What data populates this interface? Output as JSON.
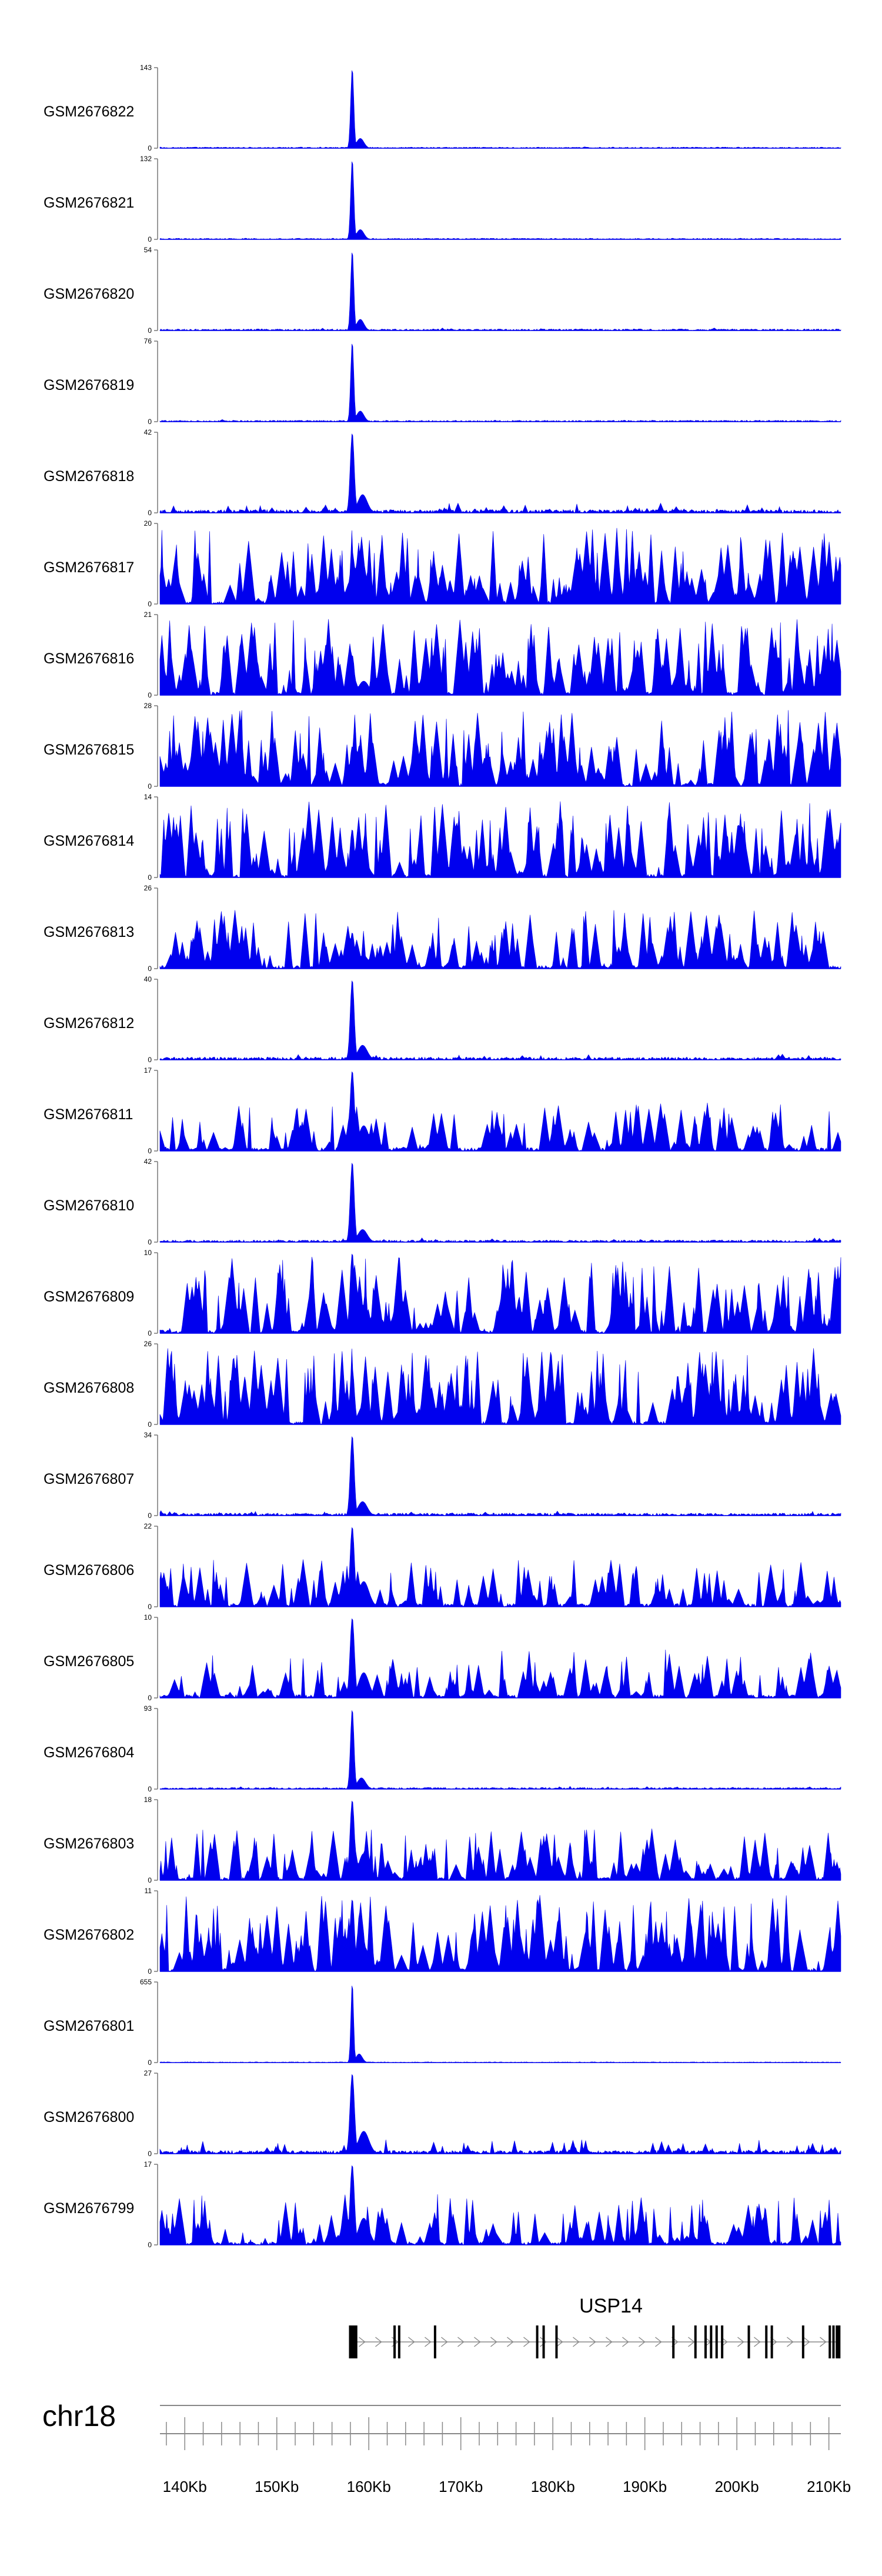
{
  "chart_data": {
    "type": "area",
    "title": "",
    "chromosome": "chr18",
    "x_unit": "Kb",
    "xlim": [
      137.3,
      211.3
    ],
    "ticks_kb": [
      140,
      150,
      160,
      170,
      180,
      190,
      200,
      210
    ],
    "tick_labels": [
      "140Kb",
      "150Kb",
      "160Kb",
      "170Kb",
      "180Kb",
      "190Kb",
      "200Kb",
      "210Kb"
    ],
    "minor_tick_step_kb": 2,
    "series_color": "#0000ee",
    "peak_center_kb": 158.2,
    "tracks": [
      {
        "name": "GSM2676822",
        "ymax": "143",
        "ymin": "0",
        "peak_fraction": 1.0,
        "background": 0.05,
        "peak_width_kb": 0.35
      },
      {
        "name": "GSM2676821",
        "ymax": "132",
        "ymin": "0",
        "peak_fraction": 1.0,
        "background": 0.05,
        "peak_width_kb": 0.35
      },
      {
        "name": "GSM2676820",
        "ymax": "54",
        "ymin": "0",
        "peak_fraction": 1.0,
        "background": 0.1,
        "peak_width_kb": 0.35
      },
      {
        "name": "GSM2676819",
        "ymax": "76",
        "ymin": "0",
        "peak_fraction": 1.0,
        "background": 0.08,
        "peak_width_kb": 0.35
      },
      {
        "name": "GSM2676818",
        "ymax": "42",
        "ymin": "0",
        "peak_fraction": 1.0,
        "background": 0.35,
        "peak_width_kb": 0.45
      },
      {
        "name": "GSM2676817",
        "ymax": "20",
        "ymin": "0",
        "peak_fraction": 0.55,
        "background": 0.95,
        "peak_width_kb": 0.5
      },
      {
        "name": "GSM2676816",
        "ymax": "21",
        "ymin": "0",
        "peak_fraction": 0.5,
        "background": 0.95,
        "peak_width_kb": 0.5
      },
      {
        "name": "GSM2676815",
        "ymax": "28",
        "ymin": "0",
        "peak_fraction": 0.5,
        "background": 0.95,
        "peak_width_kb": 0.5
      },
      {
        "name": "GSM2676814",
        "ymax": "14",
        "ymin": "0",
        "peak_fraction": 0.6,
        "background": 0.95,
        "peak_width_kb": 0.5
      },
      {
        "name": "GSM2676813",
        "ymax": "26",
        "ymin": "0",
        "peak_fraction": 0.45,
        "background": 0.75,
        "peak_width_kb": 0.5
      },
      {
        "name": "GSM2676812",
        "ymax": "40",
        "ymin": "0",
        "peak_fraction": 1.0,
        "background": 0.22,
        "peak_width_kb": 0.45
      },
      {
        "name": "GSM2676811",
        "ymax": "17",
        "ymin": "0",
        "peak_fraction": 1.0,
        "background": 0.6,
        "peak_width_kb": 0.5
      },
      {
        "name": "GSM2676810",
        "ymax": "42",
        "ymin": "0",
        "peak_fraction": 1.0,
        "background": 0.15,
        "peak_width_kb": 0.45
      },
      {
        "name": "GSM2676809",
        "ymax": "10",
        "ymin": "0",
        "peak_fraction": 1.0,
        "background": 0.95,
        "peak_width_kb": 0.5
      },
      {
        "name": "GSM2676808",
        "ymax": "26",
        "ymin": "0",
        "peak_fraction": 0.7,
        "background": 0.95,
        "peak_width_kb": 0.5
      },
      {
        "name": "GSM2676807",
        "ymax": "34",
        "ymin": "0",
        "peak_fraction": 1.0,
        "background": 0.2,
        "peak_width_kb": 0.45
      },
      {
        "name": "GSM2676806",
        "ymax": "22",
        "ymin": "0",
        "peak_fraction": 1.0,
        "background": 0.6,
        "peak_width_kb": 0.5
      },
      {
        "name": "GSM2676805",
        "ymax": "10",
        "ymin": "0",
        "peak_fraction": 1.0,
        "background": 0.6,
        "peak_width_kb": 0.5
      },
      {
        "name": "GSM2676804",
        "ymax": "93",
        "ymin": "0",
        "peak_fraction": 1.0,
        "background": 0.1,
        "peak_width_kb": 0.4
      },
      {
        "name": "GSM2676803",
        "ymax": "18",
        "ymin": "0",
        "peak_fraction": 1.0,
        "background": 0.65,
        "peak_width_kb": 0.5
      },
      {
        "name": "GSM2676802",
        "ymax": "11",
        "ymin": "0",
        "peak_fraction": 0.9,
        "background": 0.95,
        "peak_width_kb": 0.5
      },
      {
        "name": "GSM2676801",
        "ymax": "655",
        "ymin": "0",
        "peak_fraction": 1.0,
        "background": 0.01,
        "peak_width_kb": 0.3
      },
      {
        "name": "GSM2676800",
        "ymax": "27",
        "ymin": "0",
        "peak_fraction": 1.0,
        "background": 0.5,
        "peak_width_kb": 0.5
      },
      {
        "name": "GSM2676799",
        "ymax": "17",
        "ymin": "0",
        "peak_fraction": 1.0,
        "background": 0.65,
        "peak_width_kb": 0.5
      }
    ],
    "gene": {
      "name": "USP14",
      "strand": "+",
      "start_kb": 158.1,
      "end_kb": 211.1,
      "exons_kb": [
        158.1,
        158.5,
        162.8,
        163.3,
        167.2,
        178.3,
        179.0,
        180.4,
        193.1,
        195.5,
        196.6,
        197.2,
        197.8,
        198.4,
        201.3,
        203.2,
        203.8,
        207.2,
        210.1,
        210.5,
        211.0
      ]
    }
  }
}
